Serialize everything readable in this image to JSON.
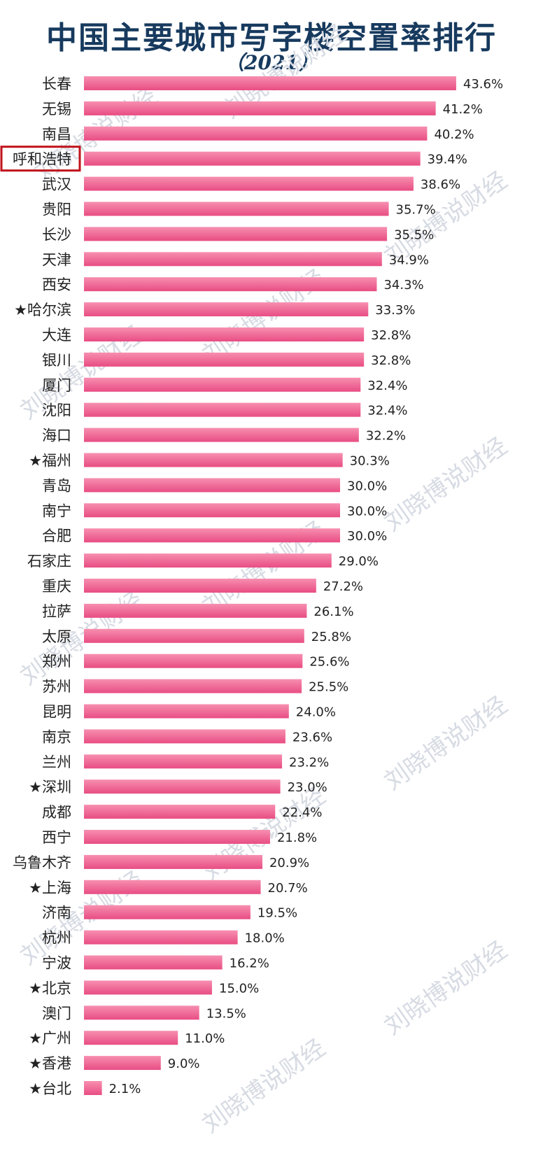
{
  "title": "中国主要城市写字楼空置率排行",
  "subtitle": "（2021）",
  "colors": {
    "bar_light": "#f78fb0",
    "bar_dark": "#e84d83",
    "text": "#222222",
    "title": "#173a5e",
    "highlight_box": "#c0121b"
  },
  "chart_data": {
    "type": "bar",
    "orientation": "horizontal",
    "value_unit": "%",
    "highlight": "呼和浩特",
    "categories": [
      "长春",
      "无锡",
      "南昌",
      "呼和浩特",
      "武汉",
      "贵阳",
      "长沙",
      "天津",
      "西安",
      "★哈尔滨",
      "大连",
      "银川",
      "厦门",
      "沈阳",
      "海口",
      "★福州",
      "青岛",
      "南宁",
      "合肥",
      "石家庄",
      "重庆",
      "拉萨",
      "太原",
      "郑州",
      "苏州",
      "昆明",
      "南京",
      "兰州",
      "★深圳",
      "成都",
      "西宁",
      "乌鲁木齐",
      "★上海",
      "济南",
      "杭州",
      "宁波",
      "★北京",
      "澳门",
      "★广州",
      "★香港",
      "★台北"
    ],
    "values": [
      43.6,
      41.2,
      40.2,
      39.4,
      38.6,
      35.7,
      35.5,
      34.9,
      34.3,
      33.3,
      32.8,
      32.8,
      32.4,
      32.4,
      32.2,
      30.3,
      30.0,
      30.0,
      30.0,
      29.0,
      27.2,
      26.1,
      25.8,
      25.6,
      25.5,
      24.0,
      23.6,
      23.2,
      23.0,
      22.4,
      21.8,
      20.9,
      20.7,
      19.5,
      18.0,
      16.2,
      15.0,
      13.5,
      11.0,
      9.0,
      2.1
    ],
    "value_labels": [
      "43.6%",
      "41.2%",
      "40.2%",
      "39.4%",
      "38.6%",
      "35.7%",
      "35.5%",
      "34.9%",
      "34.3%",
      "33.3%",
      "32.8%",
      "32.8%",
      "32.4%",
      "32.4%",
      "32.2%",
      "30.3%",
      "30.0%",
      "30.0%",
      "30.0%",
      "29.0%",
      "27.2%",
      "26.1%",
      "25.8%",
      "25.6%",
      "25.5%",
      "24.0%",
      "23.6%",
      "23.2%",
      "23.0%",
      "22.4%",
      "21.8%",
      "20.9%",
      "20.7%",
      "19.5%",
      "18.0%",
      "16.2%",
      "15.0%",
      "13.5%",
      "11.0%",
      "9.0%",
      "2.1%"
    ]
  },
  "watermark": "刘晓博说财经"
}
